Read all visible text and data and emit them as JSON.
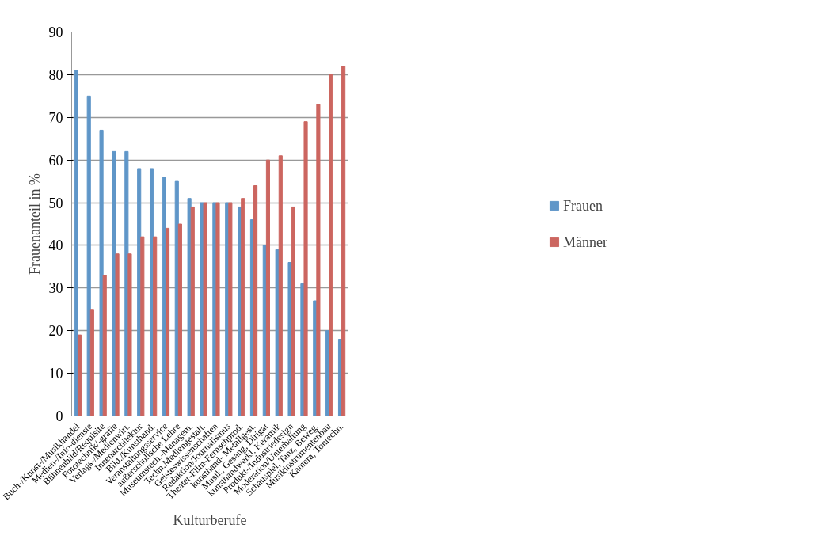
{
  "chart_data": {
    "type": "bar",
    "xlabel": "Kulturberufe",
    "ylabel": "Frauenanteil in %",
    "categories": [
      "Buch-/Kunst-/Musikhandel",
      "Medien-/Info-dienste",
      "Bühnenbild/Requisite",
      "Fototechnik/-grafie",
      "Verlags-/Medienwirt.",
      "Innenarchitektur",
      "Bild./Kunsthand.",
      "Veranstaltungsservice",
      "außerschulische Lehre",
      "Museumstech.-Managem.",
      "Techn.Mediengestalt.",
      "Geisteswissenschaften",
      "Redaktion/Journalismus",
      "Theater-Film-Fernsehprod.",
      "kunsthand- Metallgest.",
      "Musik, Gesang, Dirigat",
      "kunsthandwerkl. Keramik",
      "Produkt-/Industriedesign",
      "Moderation/Unterhaltung",
      "Schauspiel, Tanz, Beweg.",
      "Musikinstrumentenbau",
      "Kamera, Tontechn."
    ],
    "series": [
      {
        "name": "Frauen",
        "color": "#5f96c8",
        "values": [
          81,
          75,
          67,
          62,
          62,
          58,
          58,
          56,
          55,
          51,
          50,
          50,
          50,
          49,
          46,
          40,
          39,
          36,
          31,
          27,
          20,
          18
        ]
      },
      {
        "name": "Männer",
        "color": "#cc6660",
        "values": [
          19,
          25,
          33,
          38,
          38,
          42,
          42,
          44,
          45,
          49,
          50,
          50,
          50,
          51,
          54,
          60,
          61,
          49,
          69,
          73,
          80,
          82
        ]
      }
    ],
    "ylim": [
      0,
      90
    ],
    "yticks": [
      0,
      10,
      20,
      30,
      40,
      50,
      60,
      70,
      80,
      90
    ],
    "grid": "y",
    "legend": "right"
  }
}
